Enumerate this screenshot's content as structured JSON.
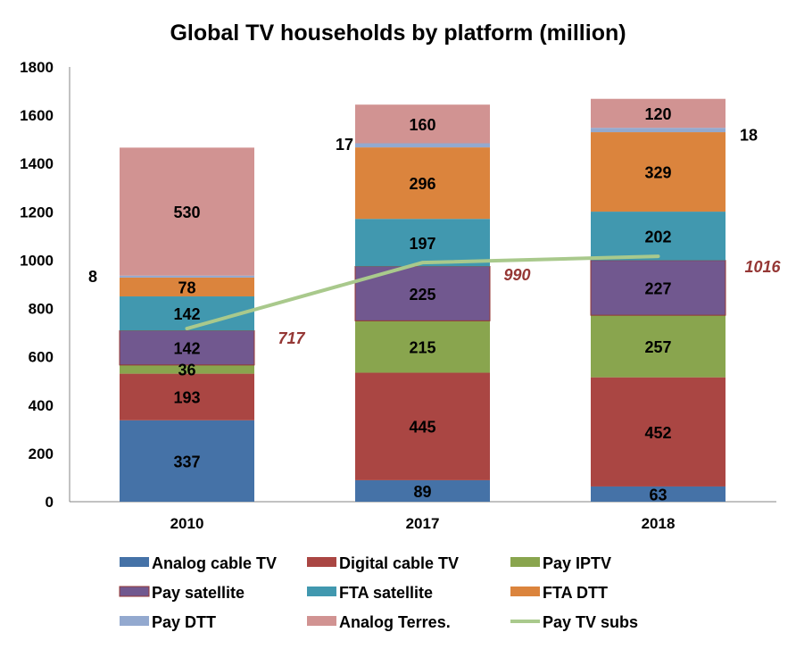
{
  "chart_data": {
    "type": "bar",
    "stacked": true,
    "title": "Global TV households by platform (million)",
    "xlabel": "",
    "ylabel": "",
    "ylim": [
      0,
      1800
    ],
    "yticks": [
      0,
      200,
      400,
      600,
      800,
      1000,
      1200,
      1400,
      1600,
      1800
    ],
    "grid": false,
    "legend_position": "bottom",
    "categories": [
      "2010",
      "2017",
      "2018"
    ],
    "series": [
      {
        "name": "Analog cable TV",
        "color": "#4572A7",
        "values": [
          337,
          89,
          63
        ]
      },
      {
        "name": "Digital cable TV",
        "color": "#AA4643",
        "values": [
          193,
          445,
          452
        ]
      },
      {
        "name": "Pay IPTV",
        "color": "#89A54E",
        "values": [
          36,
          215,
          257
        ]
      },
      {
        "name": "Pay satellite",
        "color": "#71588F",
        "border": "#953735",
        "values": [
          142,
          225,
          227
        ]
      },
      {
        "name": "FTA satellite",
        "color": "#4198AF",
        "values": [
          142,
          197,
          202
        ]
      },
      {
        "name": "FTA DTT",
        "color": "#DB843D",
        "values": [
          78,
          296,
          329
        ]
      },
      {
        "name": "Pay DTT",
        "color": "#93A9CF",
        "values": [
          8,
          17,
          18
        ]
      },
      {
        "name": "Analog Terres.",
        "color": "#D19392",
        "values": [
          530,
          160,
          120
        ]
      }
    ],
    "line_series": {
      "name": "Pay TV subs",
      "color": "#A9C98C",
      "values": [
        717,
        990,
        1016
      ],
      "label_color": "#953735"
    }
  }
}
